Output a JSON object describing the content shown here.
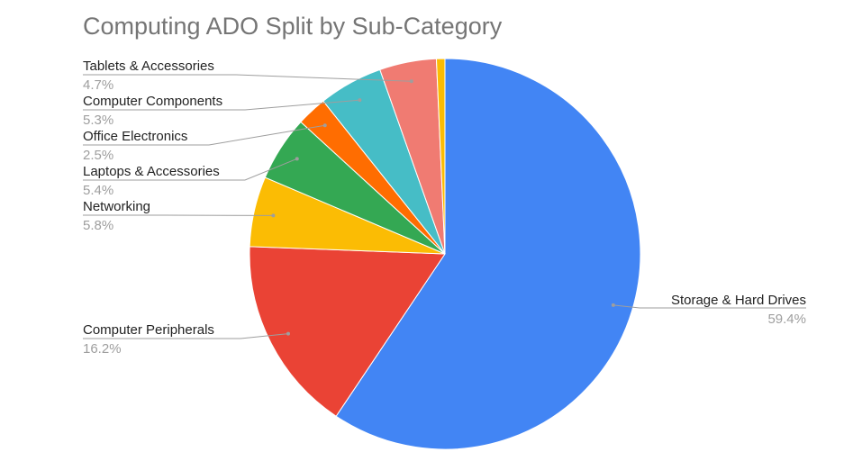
{
  "chart_data": {
    "type": "pie",
    "title": "Computing ADO Split by Sub-Category",
    "slices": [
      {
        "label": "Storage & Hard Drives",
        "value": 59.4,
        "value_label": "59.4%",
        "color": "#4285f4"
      },
      {
        "label": "Computer Peripherals",
        "value": 16.2,
        "value_label": "16.2%",
        "color": "#ea4335"
      },
      {
        "label": "Networking",
        "value": 5.8,
        "value_label": "5.8%",
        "color": "#fbbc04"
      },
      {
        "label": "Laptops & Accessories",
        "value": 5.4,
        "value_label": "5.4%",
        "color": "#34a853"
      },
      {
        "label": "Office Electronics",
        "value": 2.5,
        "value_label": "2.5%",
        "color": "#ff6d01"
      },
      {
        "label": "Computer Components",
        "value": 5.3,
        "value_label": "5.3%",
        "color": "#46bdc6"
      },
      {
        "label": "Tablets & Accessories",
        "value": 4.7,
        "value_label": "4.7%",
        "color": "#f07b72"
      },
      {
        "label": "",
        "value": 0.7,
        "value_label": "",
        "color": "#fbbc04"
      }
    ],
    "legend": "none",
    "label_style": "callout lines with name and percentage"
  }
}
